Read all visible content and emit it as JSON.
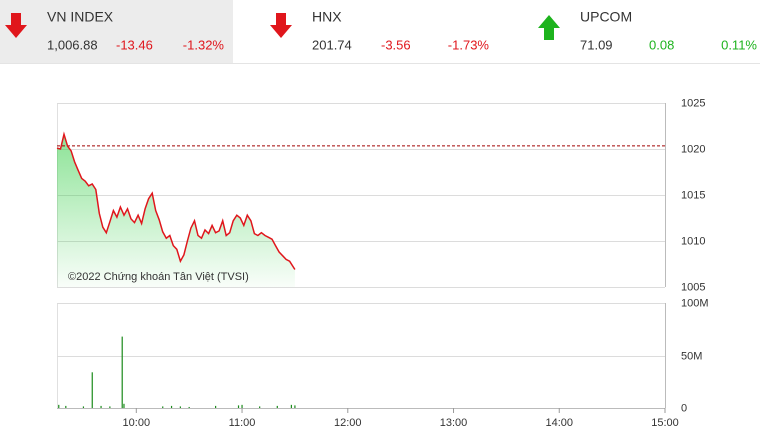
{
  "tickers": [
    {
      "name": "VN INDEX",
      "price": "1,006.88",
      "change": -13.46,
      "percent": "-1.32%"
    },
    {
      "name": "HNX",
      "price": "201.74",
      "change": -3.56,
      "percent": "-1.73%"
    },
    {
      "name": "UPCOM",
      "price": "71.09",
      "change": 0.08,
      "percent": "0.11%"
    }
  ],
  "up_color": "#1db31d",
  "down_color": "#e0161c",
  "chart_data": [
    {
      "type": "line",
      "annotation": "©2022 Chứng khoán Tân Việt (TVSI)",
      "color": "#e0161c",
      "fill": "#2ecc40",
      "reference": 1020.34,
      "reference_color": "#a00000",
      "xlim": [
        "09:15",
        "15:00"
      ],
      "ylim": [
        1005,
        1025
      ],
      "yticks": [
        1005,
        1010,
        1015,
        1020,
        1025
      ],
      "grid": true,
      "x": [
        "09:15",
        "09:17",
        "09:19",
        "09:21",
        "09:23",
        "09:25",
        "09:27",
        "09:29",
        "09:31",
        "09:33",
        "09:35",
        "09:37",
        "09:39",
        "09:41",
        "09:43",
        "09:45",
        "09:47",
        "09:49",
        "09:51",
        "09:53",
        "09:55",
        "09:57",
        "09:59",
        "10:01",
        "10:03",
        "10:05",
        "10:07",
        "10:09",
        "10:11",
        "10:13",
        "10:15",
        "10:17",
        "10:19",
        "10:21",
        "10:23",
        "10:25",
        "10:27",
        "10:29",
        "10:31",
        "10:33",
        "10:35",
        "10:37",
        "10:39",
        "10:41",
        "10:43",
        "10:45",
        "10:47",
        "10:49",
        "10:51",
        "10:53",
        "10:55",
        "10:57",
        "10:59",
        "11:01",
        "11:03",
        "11:05",
        "11:07",
        "11:09",
        "11:11",
        "11:13",
        "11:15",
        "11:17",
        "11:19",
        "11:21",
        "11:23",
        "11:25",
        "11:27",
        "11:30"
      ],
      "values": [
        1020.1,
        1020.0,
        1021.6,
        1020.3,
        1019.8,
        1018.6,
        1017.7,
        1016.8,
        1016.5,
        1016.0,
        1016.2,
        1015.6,
        1013.0,
        1011.5,
        1010.9,
        1012.1,
        1013.3,
        1012.6,
        1013.7,
        1012.8,
        1013.5,
        1012.4,
        1012.0,
        1012.8,
        1011.9,
        1013.5,
        1014.6,
        1015.2,
        1013.3,
        1012.3,
        1011.0,
        1010.3,
        1010.6,
        1009.5,
        1009.1,
        1007.8,
        1008.5,
        1010.0,
        1011.4,
        1012.2,
        1010.6,
        1010.3,
        1011.2,
        1010.8,
        1011.7,
        1010.9,
        1011.1,
        1012.2,
        1010.6,
        1010.9,
        1012.2,
        1012.8,
        1012.5,
        1011.7,
        1012.8,
        1012.2,
        1010.8,
        1010.6,
        1010.9,
        1010.6,
        1010.4,
        1010.2,
        1009.5,
        1008.8,
        1008.4,
        1008.0,
        1007.8,
        1006.9
      ]
    },
    {
      "type": "bar",
      "color": "#1a8a1a",
      "xlim": [
        "09:15",
        "15:00"
      ],
      "xticks": [
        "10:00",
        "11:00",
        "12:00",
        "13:00",
        "14:00",
        "15:00"
      ],
      "ylim": [
        0,
        100000000
      ],
      "yticks": [
        0,
        {
          "value": 50000000,
          "label": "50M"
        },
        {
          "value": 100000000,
          "label": "100M"
        }
      ],
      "grid": true,
      "x": [
        "09:16",
        "09:20",
        "09:30",
        "09:35",
        "09:40",
        "09:45",
        "09:52",
        "09:53",
        "10:15",
        "10:20",
        "10:25",
        "10:30",
        "10:45",
        "10:58",
        "11:00",
        "11:10",
        "11:20",
        "11:28",
        "11:30"
      ],
      "values": [
        3000000,
        2000000,
        1500000,
        34000000,
        2000000,
        1500000,
        68000000,
        4000000,
        1500000,
        2000000,
        1500000,
        1000000,
        2000000,
        2500000,
        3000000,
        1500000,
        2000000,
        3000000,
        2500000
      ]
    }
  ]
}
